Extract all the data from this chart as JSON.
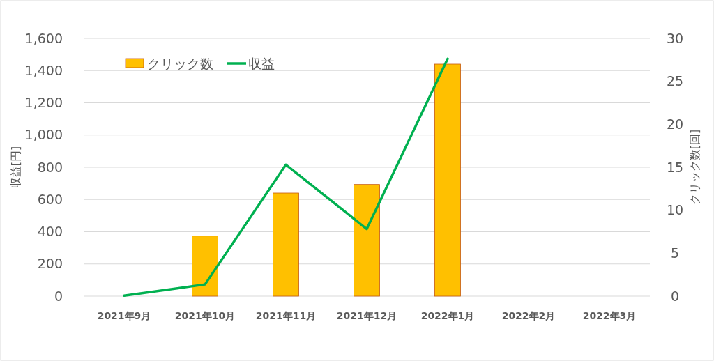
{
  "chart_data": {
    "type": "bar",
    "categories": [
      "2021年9月",
      "2021年10月",
      "2021年11月",
      "2021年12月",
      "2022年1月",
      "2022年2月",
      "2022年3月"
    ],
    "series": [
      {
        "name": "クリック数",
        "axis": "y2",
        "color": "#ffc000",
        "values": [
          0,
          7,
          12,
          13,
          27,
          null,
          null
        ]
      },
      {
        "name": "収益",
        "type": "line",
        "axis": "y",
        "color": "#00b050",
        "values": [
          3,
          73,
          816,
          417,
          1473,
          null,
          null
        ]
      }
    ],
    "ylabel": "収益[円]",
    "y2label": "クリック数[回]",
    "ylim": [
      0,
      1600
    ],
    "yticks": [
      {
        "value": 0,
        "label": "0"
      },
      {
        "value": 200,
        "label": "200"
      },
      {
        "value": 400,
        "label": "400"
      },
      {
        "value": 600,
        "label": "600"
      },
      {
        "value": 800,
        "label": "800"
      },
      {
        "value": 1000,
        "label": "1,000"
      },
      {
        "value": 1200,
        "label": "1,200"
      },
      {
        "value": 1400,
        "label": "1,400"
      },
      {
        "value": 1600,
        "label": "1,600"
      }
    ],
    "y2lim": [
      0,
      30
    ],
    "y2ticks": [
      0,
      5,
      10,
      15,
      20,
      25,
      30
    ],
    "grid": "y",
    "legend": "top left",
    "marker": "none",
    "line_style": "solid"
  }
}
